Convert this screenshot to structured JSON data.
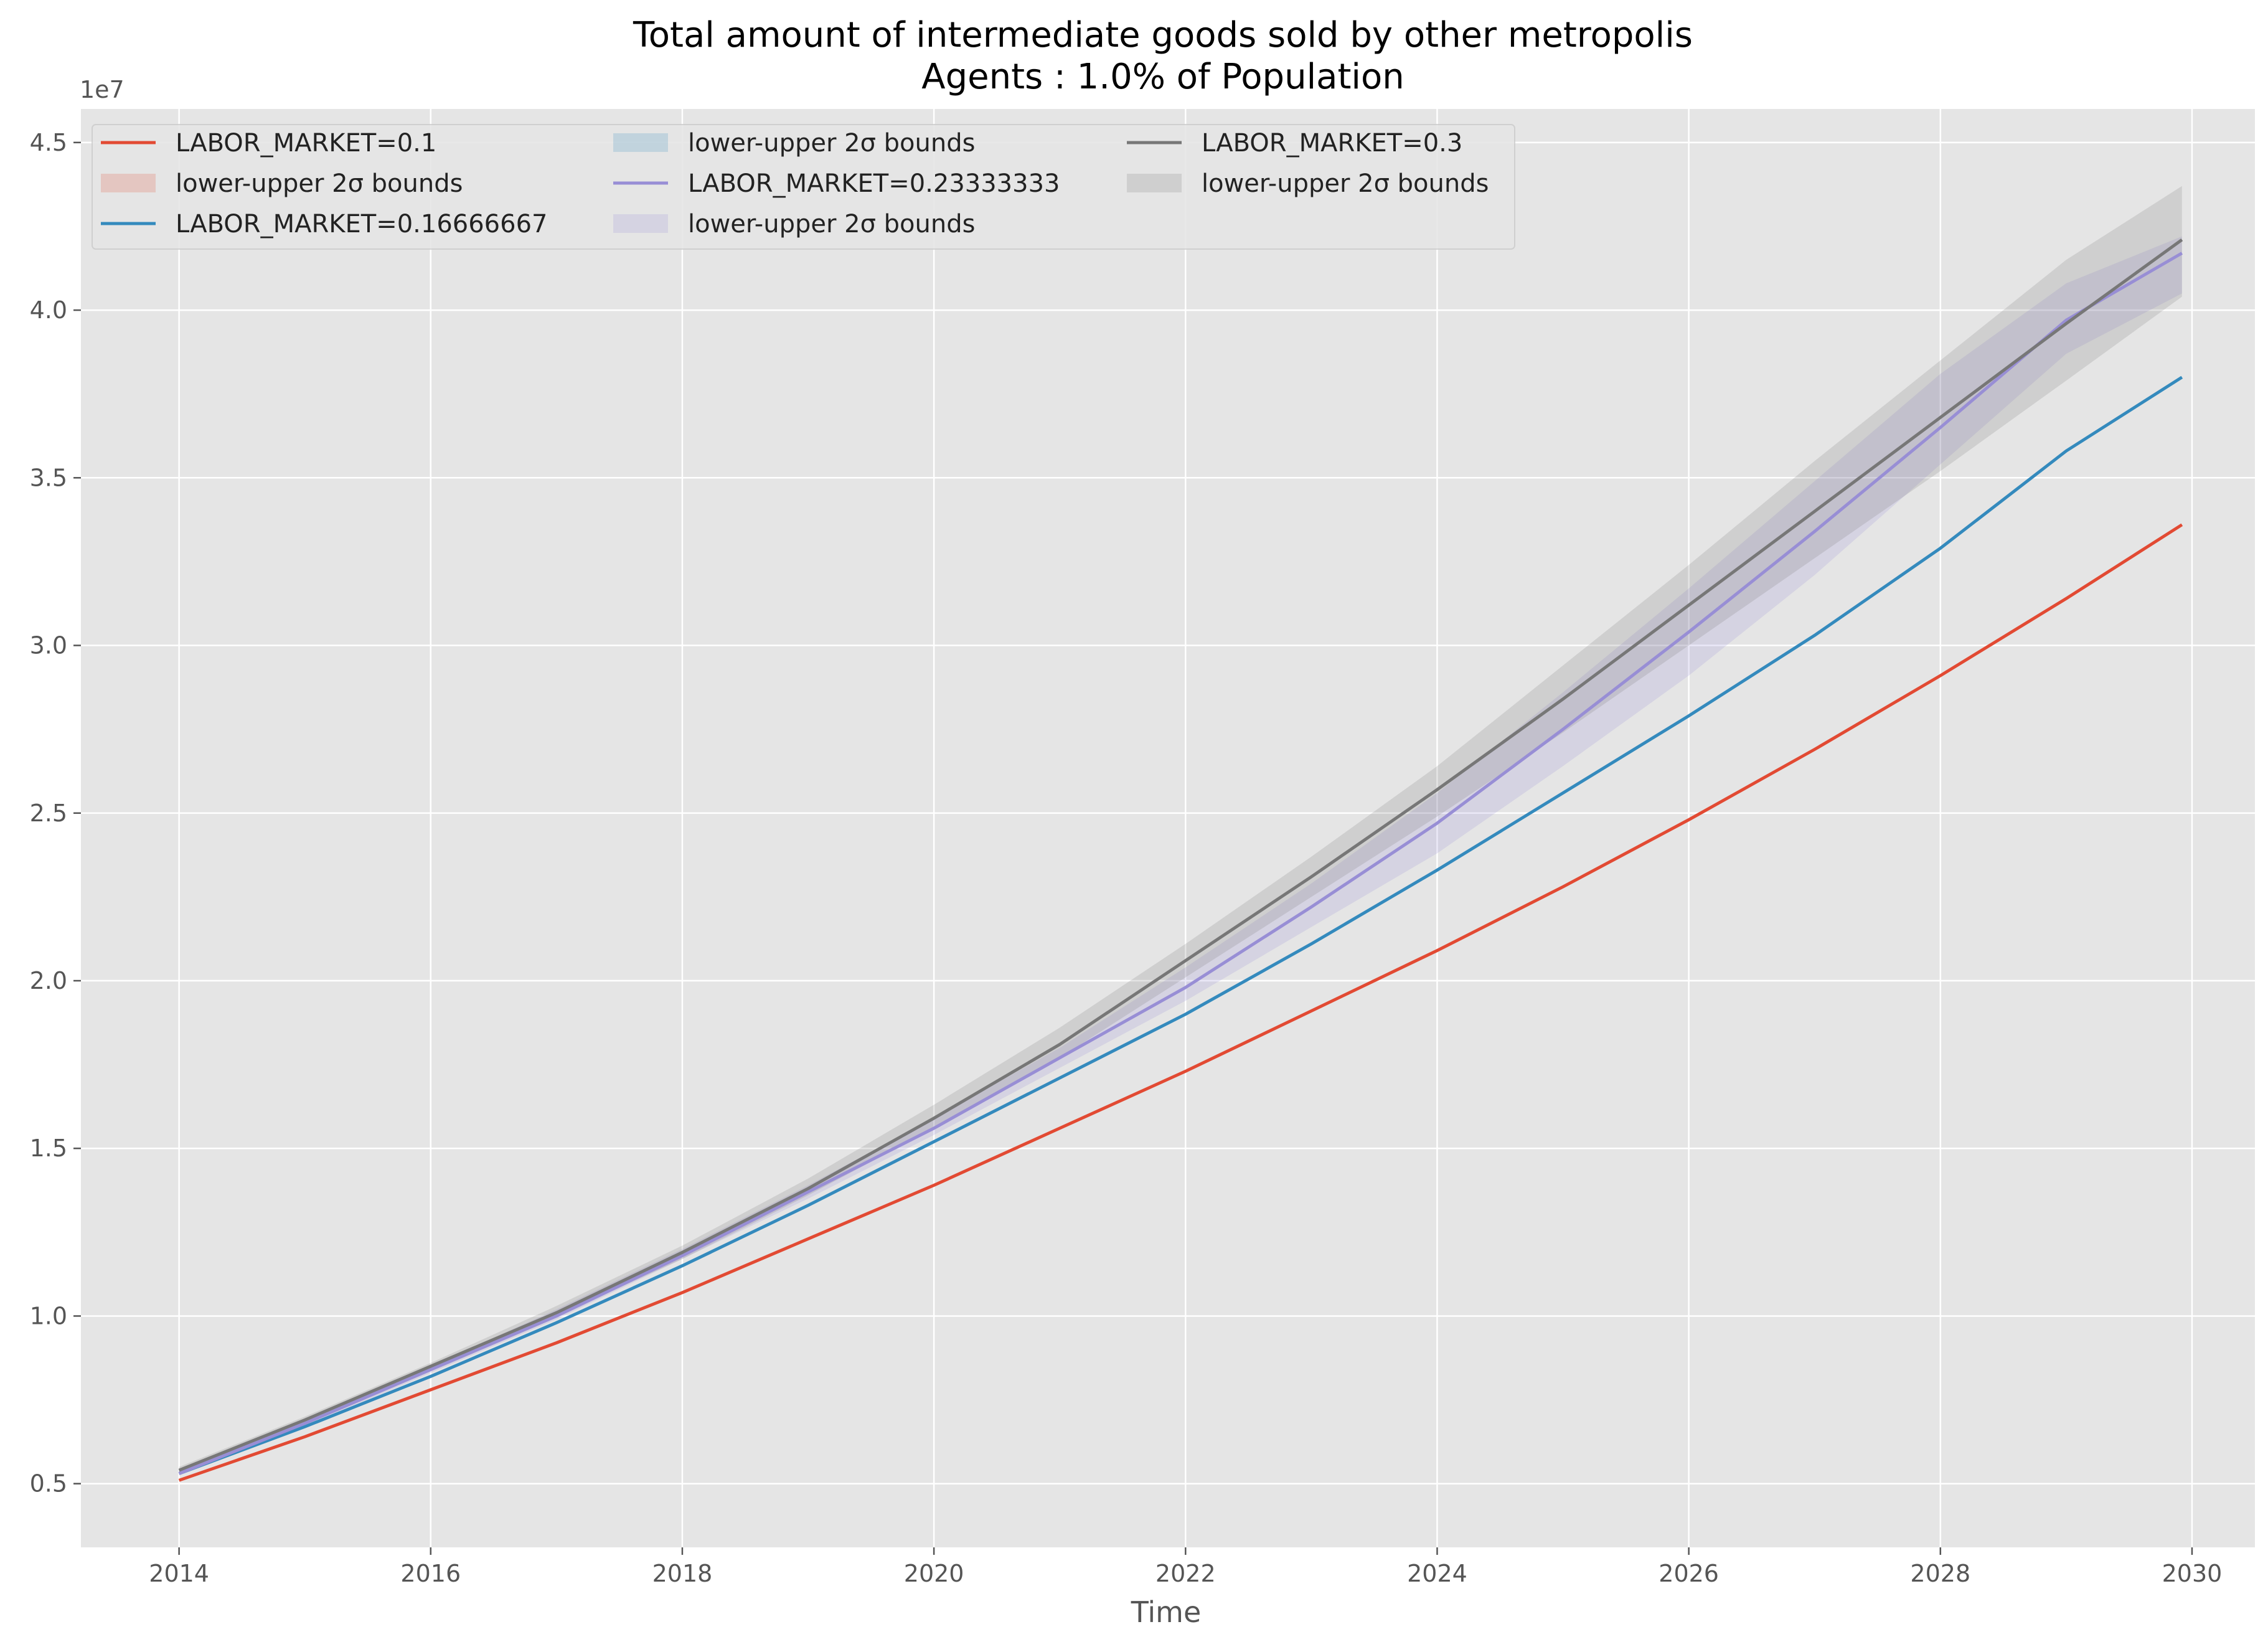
{
  "chart_data": {
    "type": "line",
    "title": "Total amount of intermediate goods sold by other metropolis",
    "subtitle": "Agents : 1.0% of Population",
    "xlabel": "Time",
    "ylabel": "",
    "y_offset_label": "1e7",
    "xlim": [
      2013.22,
      2030.5
    ],
    "ylim": [
      0.31,
      4.6
    ],
    "y_unit_scale": 10000000,
    "x_ticks": [
      2014,
      2016,
      2018,
      2020,
      2022,
      2024,
      2026,
      2028,
      2030
    ],
    "x_tick_labels": [
      "2014",
      "2016",
      "2018",
      "2020",
      "2022",
      "2024",
      "2026",
      "2028",
      "2030"
    ],
    "y_ticks": [
      0.5,
      1.0,
      1.5,
      2.0,
      2.5,
      3.0,
      3.5,
      4.0,
      4.5
    ],
    "y_tick_labels": [
      "0.5",
      "1.0",
      "1.5",
      "2.0",
      "2.5",
      "3.0",
      "3.5",
      "4.0",
      "4.5"
    ],
    "grid": true,
    "legend_position": "top-left",
    "legend_columns": 3,
    "x": [
      2014,
      2015,
      2016,
      2017,
      2018,
      2019,
      2020,
      2021,
      2022,
      2023,
      2024,
      2025,
      2026,
      2027,
      2028,
      2029,
      2029.92
    ],
    "series": [
      {
        "name": "LABOR_MARKET=0.1",
        "color": "#E24A33",
        "values": [
          0.51,
          0.64,
          0.78,
          0.92,
          1.07,
          1.23,
          1.39,
          1.56,
          1.73,
          1.91,
          2.09,
          2.28,
          2.48,
          2.69,
          2.91,
          3.14,
          3.36
        ],
        "band_label": "lower-upper 2σ bounds",
        "band_color": "#E24A33",
        "band_lower": [
          0.51,
          0.64,
          0.78,
          0.92,
          1.07,
          1.23,
          1.39,
          1.56,
          1.73,
          1.91,
          2.09,
          2.28,
          2.48,
          2.69,
          2.91,
          3.14,
          3.36
        ],
        "band_upper": [
          0.51,
          0.64,
          0.78,
          0.92,
          1.07,
          1.23,
          1.39,
          1.56,
          1.73,
          1.91,
          2.09,
          2.28,
          2.48,
          2.69,
          2.91,
          3.14,
          3.36
        ]
      },
      {
        "name": "LABOR_MARKET=0.16666667",
        "color": "#348ABD",
        "values": [
          0.53,
          0.67,
          0.82,
          0.98,
          1.15,
          1.33,
          1.52,
          1.71,
          1.9,
          2.11,
          2.33,
          2.56,
          2.79,
          3.03,
          3.29,
          3.58,
          3.8
        ],
        "band_label": "lower-upper 2σ bounds",
        "band_color": "#348ABD",
        "band_lower": [
          0.53,
          0.67,
          0.82,
          0.98,
          1.15,
          1.33,
          1.52,
          1.71,
          1.9,
          2.11,
          2.33,
          2.56,
          2.79,
          3.03,
          3.29,
          3.58,
          3.8
        ],
        "band_upper": [
          0.53,
          0.67,
          0.82,
          0.98,
          1.15,
          1.33,
          1.52,
          1.71,
          1.9,
          2.11,
          2.33,
          2.56,
          2.79,
          3.03,
          3.29,
          3.58,
          3.8
        ]
      },
      {
        "name": "LABOR_MARKET=0.23333333",
        "color": "#988ED5",
        "values": [
          0.53,
          0.68,
          0.84,
          1.0,
          1.18,
          1.37,
          1.56,
          1.77,
          1.98,
          2.22,
          2.47,
          2.75,
          3.04,
          3.34,
          3.65,
          3.97,
          4.17
        ],
        "band_label": "lower-upper 2σ bounds",
        "band_color": "#988ED5",
        "band_lower": [
          0.53,
          0.67,
          0.83,
          0.99,
          1.17,
          1.35,
          1.54,
          1.74,
          1.94,
          2.16,
          2.38,
          2.64,
          2.91,
          3.21,
          3.54,
          3.87,
          4.05
        ],
        "band_upper": [
          0.54,
          0.69,
          0.85,
          1.02,
          1.2,
          1.39,
          1.59,
          1.8,
          2.04,
          2.29,
          2.56,
          2.86,
          3.17,
          3.49,
          3.81,
          4.08,
          4.22
        ]
      },
      {
        "name": "LABOR_MARKET=0.3",
        "color": "#777777",
        "values": [
          0.54,
          0.69,
          0.85,
          1.01,
          1.19,
          1.38,
          1.59,
          1.81,
          2.06,
          2.31,
          2.57,
          2.84,
          3.12,
          3.4,
          3.68,
          3.96,
          4.21
        ],
        "band_label": "lower-upper 2σ bounds",
        "band_color": "#777777",
        "band_lower": [
          0.53,
          0.68,
          0.84,
          1.0,
          1.17,
          1.36,
          1.56,
          1.77,
          2.01,
          2.25,
          2.49,
          2.74,
          3.0,
          3.26,
          3.52,
          3.79,
          4.04
        ],
        "band_upper": [
          0.55,
          0.7,
          0.86,
          1.03,
          1.21,
          1.41,
          1.63,
          1.86,
          2.11,
          2.37,
          2.64,
          2.94,
          3.24,
          3.55,
          3.85,
          4.15,
          4.37
        ]
      }
    ]
  }
}
